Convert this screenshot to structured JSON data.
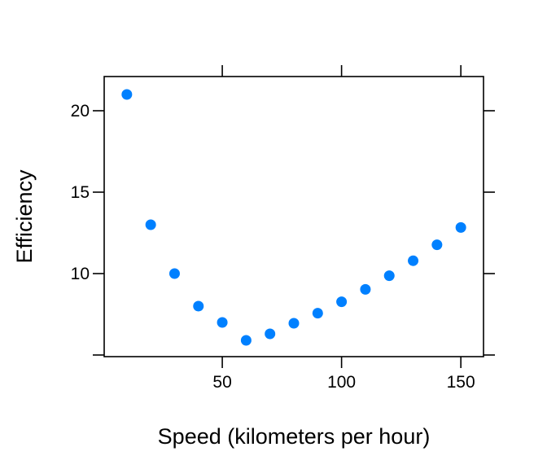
{
  "chart_data": {
    "type": "scatter",
    "title": "",
    "xlabel": "Speed (kilometers per hour)",
    "ylabel": "Efficiency",
    "xlim": [
      0.5,
      159.5
    ],
    "ylim": [
      4.9,
      22.1
    ],
    "x_ticks": [
      50,
      100,
      150
    ],
    "x_tick_labels": [
      "50",
      "100",
      "150"
    ],
    "y_ticks": [
      5,
      10,
      15,
      20
    ],
    "y_tick_labels": [
      "",
      "10",
      "15",
      "20"
    ],
    "grid": false,
    "marker_color": "#0080ff",
    "series": [
      {
        "x": [
          10,
          20,
          30,
          40,
          50,
          60,
          70,
          80,
          90,
          100,
          110,
          120,
          130,
          140,
          150
        ],
        "y": [
          21.0,
          13.0,
          10.0,
          8.0,
          7.0,
          5.9,
          6.3,
          6.95,
          7.57,
          8.27,
          9.03,
          9.87,
          10.79,
          11.77,
          12.83
        ]
      }
    ]
  }
}
